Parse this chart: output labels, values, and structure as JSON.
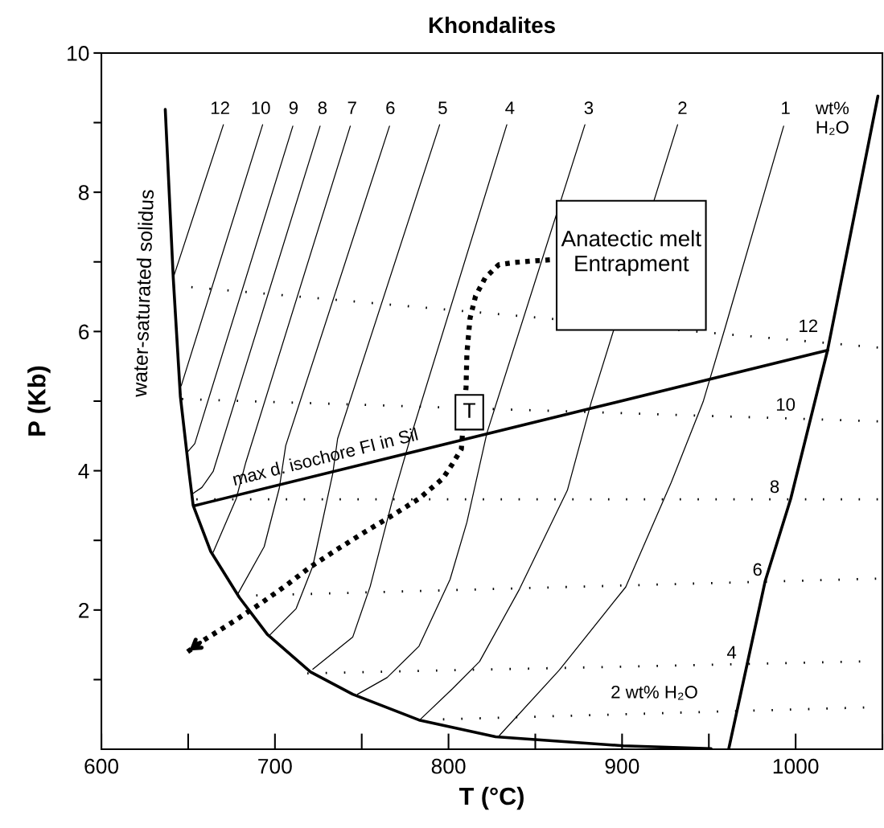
{
  "chart_data": {
    "type": "line",
    "title": "Khondalites",
    "xlabel": "T (°C)",
    "ylabel": "P (Kb)",
    "xlim": [
      600,
      1050
    ],
    "ylim": [
      0,
      10
    ],
    "xticks": [
      600,
      700,
      800,
      900,
      1000
    ],
    "yticks": [
      {
        "value": 1,
        "label": null
      },
      2,
      {
        "value": 3,
        "label": null
      },
      4,
      {
        "value": 5,
        "label": null
      },
      6,
      {
        "value": 7,
        "label": null
      },
      8,
      {
        "value": 9,
        "label": null
      },
      10
    ],
    "grid": false,
    "series": [
      {
        "type": "line",
        "line_style": "solid",
        "color": "#000000",
        "x": [
          636.8,
          641.4,
          645.5,
          650.6,
          652.9,
          663.0,
          679.5,
          695.6,
          720.5,
          744.8,
          783.0,
          827.1,
          900.7,
          951.3
        ],
        "values": [
          9.19,
          6.77,
          5.07,
          3.96,
          3.5,
          2.84,
          2.18,
          1.65,
          1.11,
          0.79,
          0.42,
          0.18,
          0.05,
          0.01
        ]
      },
      {
        "type": "line",
        "line_style": "solid",
        "color": "#000000",
        "x": [
          961.4,
          982.5,
          997.2,
          1018.4,
          1047.4
        ],
        "values": [
          0.0,
          2.42,
          3.6,
          5.73,
          9.38
        ]
      },
      {
        "type": "line",
        "line_style": "solid",
        "color": "#000000",
        "x": [
          653.8,
          1018.4
        ],
        "values": [
          3.5,
          5.73
        ]
      },
      {
        "type": "line",
        "line_style": "solid",
        "color": "#000000",
        "x": [
          670.3,
          641.4
        ],
        "values": [
          8.97,
          6.77
        ]
      },
      {
        "type": "line",
        "line_style": "solid",
        "color": "#000000",
        "x": [
          692.9,
          646.0
        ],
        "values": [
          8.97,
          5.22
        ]
      },
      {
        "type": "line",
        "line_style": "solid",
        "color": "#000000",
        "x": [
          710.3,
          653.8,
          649.7
        ],
        "values": [
          8.95,
          4.39,
          4.27
        ]
      },
      {
        "type": "line",
        "line_style": "solid",
        "color": "#000000",
        "x": [
          726.0,
          664.4,
          657.9,
          652.5
        ],
        "values": [
          8.95,
          3.99,
          3.76,
          3.67
        ]
      },
      {
        "type": "line",
        "line_style": "solid",
        "color": "#000000",
        "x": [
          743.4,
          683.2,
          677.7,
          664.4
        ],
        "values": [
          8.95,
          4.12,
          3.6,
          2.83
        ]
      },
      {
        "type": "line",
        "line_style": "solid",
        "color": "#000000",
        "x": [
          766.0,
          706.2,
          702.5,
          693.8,
          678.6
        ],
        "values": [
          8.95,
          4.36,
          3.75,
          2.91,
          2.23
        ]
      },
      {
        "type": "line",
        "line_style": "solid",
        "color": "#000000",
        "x": [
          794.9,
          736.1,
          733.3,
          721.8,
          712.2,
          696.6
        ],
        "values": [
          8.97,
          4.46,
          3.96,
          2.63,
          2.02,
          1.63
        ]
      },
      {
        "type": "line",
        "line_style": "solid",
        "color": "#000000",
        "x": [
          833.6,
          777.9,
          767.8,
          754.9,
          744.8,
          721.8
        ],
        "values": [
          8.97,
          4.46,
          3.59,
          2.34,
          1.61,
          1.15
        ]
      },
      {
        "type": "line",
        "line_style": "solid",
        "color": "#000000",
        "x": [
          878.6,
          822.1,
          810.6,
          800.9,
          783.0,
          764.6,
          747.6
        ],
        "values": [
          8.97,
          4.54,
          3.26,
          2.44,
          1.48,
          1.03,
          0.79
        ]
      },
      {
        "type": "line",
        "line_style": "solid",
        "color": "#000000",
        "x": [
          932.0,
          882.3,
          868.5,
          840.9,
          817.9,
          802.3,
          783.4
        ],
        "values": [
          8.97,
          4.99,
          3.72,
          2.3,
          1.26,
          0.87,
          0.42
        ]
      },
      {
        "type": "line",
        "line_style": "solid",
        "color": "#000000",
        "x": [
          993.1,
          959.1,
          946.7,
          928.3,
          902.1,
          863.9,
          829.4
        ],
        "values": [
          8.95,
          6.03,
          4.99,
          3.83,
          2.33,
          1.14,
          0.2
        ]
      },
      {
        "type": "line",
        "line_style": "dotted",
        "color": "#000000",
        "x": [
          641.4,
          1047.4
        ],
        "values": [
          6.66,
          5.77
        ]
      },
      {
        "type": "line",
        "line_style": "dotted",
        "color": "#000000",
        "x": [
          646.4,
          1047.4
        ],
        "values": [
          5.03,
          4.71
        ]
      },
      {
        "type": "line",
        "line_style": "dotted",
        "color": "#000000",
        "x": [
          654.7,
          1047.4
        ],
        "values": [
          3.59,
          3.59
        ]
      },
      {
        "type": "line",
        "line_style": "dotted",
        "color": "#000000",
        "x": [
          689.2,
          1046.4
        ],
        "values": [
          2.21,
          2.45
        ]
      },
      {
        "type": "line",
        "line_style": "dotted",
        "color": "#000000",
        "x": [
          718.6,
          1037.2
        ],
        "values": [
          1.09,
          1.26
        ]
      },
      {
        "type": "line",
        "line_style": "dotted",
        "color": "#000000",
        "x": [
          796.8,
          1039.5
        ],
        "values": [
          0.43,
          0.6
        ]
      },
      {
        "type": "line",
        "line_style": "dotted",
        "color": "#000000",
        "x": [
          858.4,
          846.9,
          837.7,
          829.0,
          821.1,
          815.6,
          812.4,
          810.6,
          810.1,
          807.4,
          802.3,
          796.8,
          783.0,
          767.8,
          751.7,
          735.2,
          720.5,
          705.7,
          691.0,
          674.5,
          657.9,
          649.7
        ],
        "values": [
          7.03,
          7.01,
          6.99,
          6.96,
          6.77,
          6.51,
          6.19,
          5.69,
          5.2,
          4.31,
          4.1,
          3.89,
          3.6,
          3.36,
          3.12,
          2.86,
          2.62,
          2.34,
          2.08,
          1.81,
          1.55,
          1.4
        ]
      }
    ],
    "annotations": [
      "water-saturated solidus",
      "max d. isochore FI in Sil",
      {
        "text": "Anatectic melt\nEntrapment",
        "x": 905.3,
        "y": 6.95
      },
      {
        "text": "T",
        "x": 812.0,
        "y": 4.84
      },
      "12",
      "10",
      "9",
      "8",
      "7",
      "6",
      "5",
      "4",
      "3",
      "2",
      "1",
      "wt%\nH₂O",
      "12",
      "10",
      "8",
      "6",
      "4",
      "2 wt% H₂O"
    ]
  }
}
